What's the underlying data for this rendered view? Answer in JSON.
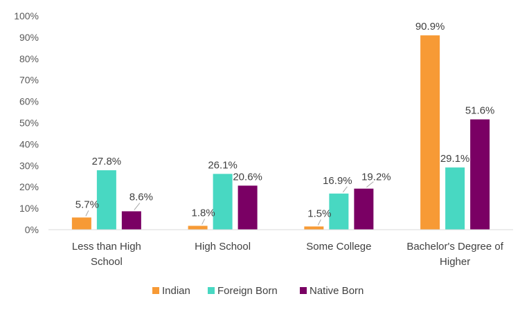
{
  "chart_data": {
    "type": "bar",
    "title": "",
    "xlabel": "",
    "ylabel": "",
    "ylim": [
      0,
      100
    ],
    "y_ticks": [
      "0%",
      "10%",
      "20%",
      "30%",
      "40%",
      "50%",
      "60%",
      "70%",
      "80%",
      "90%",
      "100%"
    ],
    "grid": false,
    "legend_position": "bottom",
    "categories": [
      [
        "Less than High",
        "School"
      ],
      [
        "High School"
      ],
      [
        "Some College"
      ],
      [
        "Bachelor's  Degree of",
        "Higher"
      ]
    ],
    "series": [
      {
        "name": "Indian",
        "color": "#F79A35",
        "values": [
          5.7,
          1.8,
          1.5,
          90.9
        ],
        "labels": [
          "5.7%",
          "1.8%",
          "1.5%",
          "90.9%"
        ]
      },
      {
        "name": "Foreign Born",
        "color": "#48D8C2",
        "values": [
          27.8,
          26.1,
          16.9,
          29.1
        ],
        "labels": [
          "27.8%",
          "26.1%",
          "16.9%",
          "29.1%"
        ]
      },
      {
        "name": "Native Born",
        "color": "#7A0064",
        "values": [
          8.6,
          20.6,
          19.2,
          51.6
        ],
        "labels": [
          "8.6%",
          "20.6%",
          "19.2%",
          "51.6%"
        ]
      }
    ]
  }
}
